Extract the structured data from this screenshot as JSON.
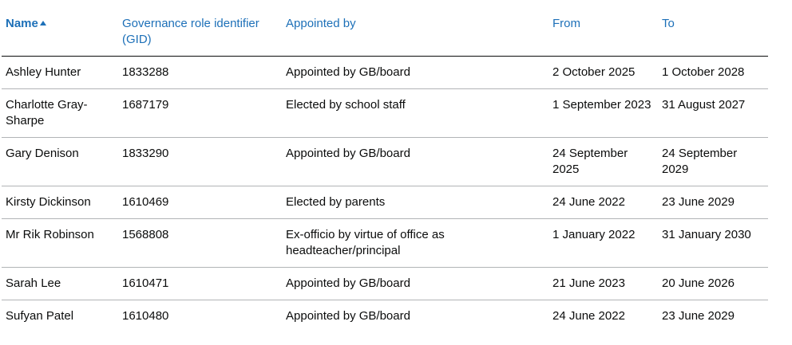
{
  "table": {
    "headers": [
      "Name",
      "Governance role identifier (GID)",
      "Appointed by",
      "From",
      "To"
    ],
    "rows": [
      [
        "Ashley Hunter",
        "1833288",
        "Appointed by GB/board",
        "2 October 2025",
        "1 October 2028"
      ],
      [
        "Charlotte Gray-Sharpe",
        "1687179",
        "Elected by school staff",
        "1 September 2023",
        "31 August 2027"
      ],
      [
        "Gary Denison",
        "1833290",
        "Appointed by GB/board",
        "24 September 2025",
        "24 September 2029"
      ],
      [
        "Kirsty Dickinson",
        "1610469",
        "Elected by parents",
        "24 June 2022",
        "23 June 2029"
      ],
      [
        "Mr Rik Robinson",
        "1568808",
        "Ex-officio by virtue of office as headteacher/principal",
        "1 January 2022",
        "31 January 2030"
      ],
      [
        "Sarah Lee",
        "1610471",
        "Appointed by GB/board",
        "21 June 2023",
        "20 June 2026"
      ],
      [
        "Sufyan Patel",
        "1610480",
        "Appointed by GB/board",
        "24 June 2022",
        "23 June 2029"
      ]
    ]
  }
}
